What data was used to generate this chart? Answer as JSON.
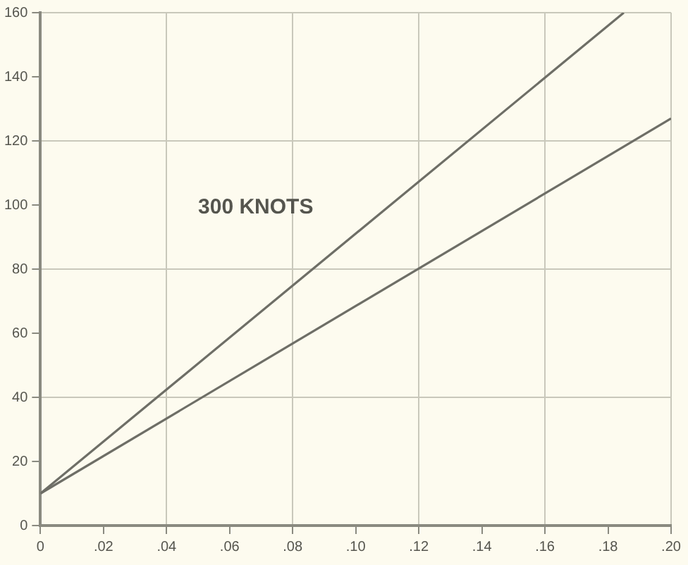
{
  "chart_data": {
    "type": "line",
    "annotations": [
      "300 KNOTS"
    ],
    "series": [
      {
        "color": "#6e6e66",
        "x": [
          0,
          0.185
        ],
        "values": [
          10,
          160
        ]
      },
      {
        "color": "#6e6e66",
        "x": [
          0,
          0.2
        ],
        "values": [
          10,
          127
        ]
      }
    ],
    "xlim": [
      0,
      0.2
    ],
    "xticks": [
      0,
      {
        "value": 0.02,
        "label": ".02"
      },
      {
        "value": 0.04,
        "label": ".04"
      },
      {
        "value": 0.06,
        "label": ".06"
      },
      {
        "value": 0.08,
        "label": ".08"
      },
      {
        "value": 0.1,
        "label": ".10"
      },
      {
        "value": 0.12,
        "label": ".12"
      },
      {
        "value": 0.14,
        "label": ".14"
      },
      {
        "value": 0.16,
        "label": ".16"
      },
      {
        "value": 0.18,
        "label": ".18"
      },
      {
        "value": 0.2,
        "label": ".20"
      }
    ],
    "ylim": [
      0,
      160
    ],
    "yticks": [
      0,
      20,
      40,
      60,
      80,
      100,
      120,
      140,
      160
    ],
    "grid": true,
    "legend": false,
    "marker": "none",
    "line_style": "solid"
  }
}
